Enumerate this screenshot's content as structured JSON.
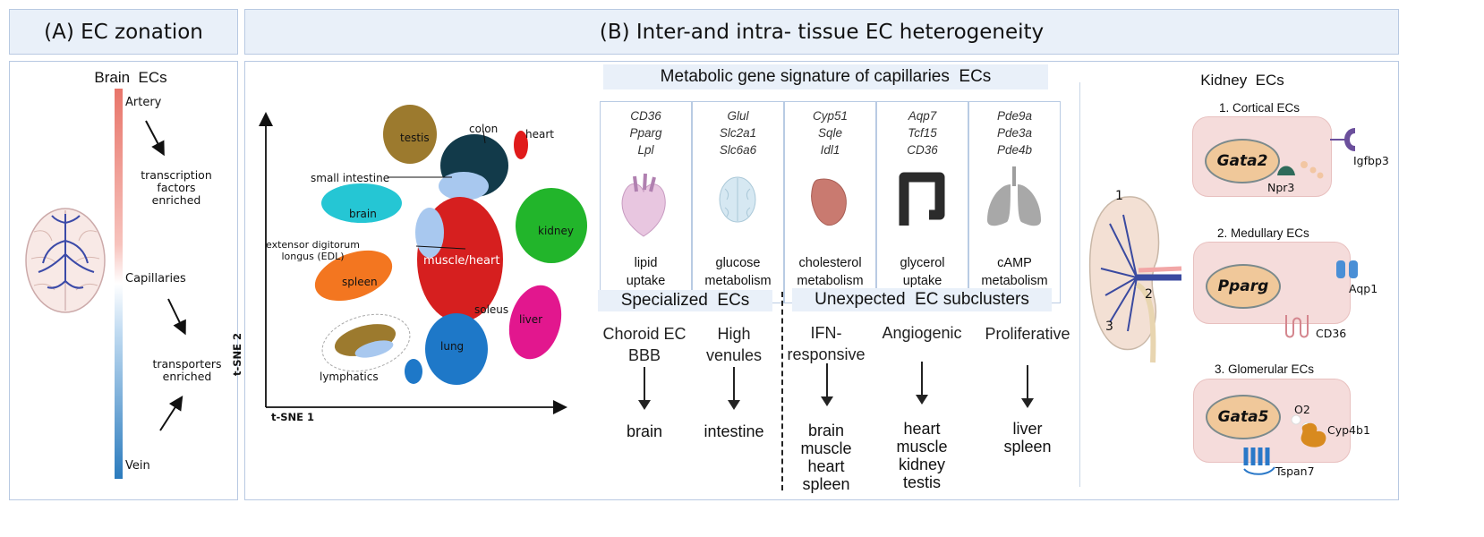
{
  "panel_a": {
    "header": "(A) EC zonation",
    "title": "Brain  ECs",
    "artery": "Artery",
    "capillaries": "Capillaries",
    "vein": "Vein",
    "tf_enriched": [
      "transcription",
      "factors",
      "enriched"
    ],
    "transporters_enriched": [
      "transporters",
      "enriched"
    ],
    "colors": {
      "artery": "#e8756a",
      "vein": "#2b7bbd"
    }
  },
  "panel_b": {
    "header": "(B) Inter-and intra- tissue EC heterogeneity",
    "tsne": {
      "y_axis": "t-SNE 2",
      "x_axis": "t-SNE 1",
      "clusters": {
        "testis": "testis",
        "colon": "colon",
        "heart": "heart",
        "small_intestine": "small intestine",
        "brain": "brain",
        "kidney": "kidney",
        "edl": [
          "extensor digitorum",
          "longus (EDL)"
        ],
        "muscle_heart": "muscle/heart",
        "spleen": "spleen",
        "soleus": "soleus",
        "liver": "liver",
        "lung": "lung",
        "lymphatics": "lymphatics"
      },
      "colors": {
        "testis": "#9c7a2e",
        "colon": "#123a4a",
        "heart": "#e01b1b",
        "brain": "#25c6d4",
        "kidney": "#22b52b",
        "muscle": "#d61f1f",
        "spleen": "#f37620",
        "liver": "#e2178e",
        "lung": "#1e78c8",
        "light_blue": "#a8c8ef"
      }
    },
    "metabolic": {
      "title": "Metabolic gene signature of capillaries  ECs",
      "columns": [
        {
          "genes": [
            "CD36",
            "Pparg",
            "Lpl"
          ],
          "function": [
            "lipid",
            "uptake"
          ],
          "icon": "heart-icon"
        },
        {
          "genes": [
            "Glul",
            "Slc2a1",
            "Slc6a6"
          ],
          "function": [
            "glucose",
            "metabolism"
          ],
          "icon": "brain-icon"
        },
        {
          "genes": [
            "Cyp51",
            "Sqle",
            "Idl1"
          ],
          "function": [
            "cholesterol",
            "metabolism"
          ],
          "icon": "liver-icon"
        },
        {
          "genes": [
            "Aqp7",
            "Tcf15",
            "CD36"
          ],
          "function": [
            "glycerol",
            "uptake"
          ],
          "icon": "colon-icon"
        },
        {
          "genes": [
            "Pde9a",
            "Pde3a",
            "Pde4b"
          ],
          "function": [
            "cAMP",
            "metabolism"
          ],
          "icon": "lung-icon"
        }
      ]
    },
    "specialized": {
      "title": "Specialized  ECs",
      "items": [
        {
          "label": [
            "Choroid EC",
            "BBB"
          ],
          "tissues": [
            "brain"
          ]
        },
        {
          "label": [
            "High",
            "venules"
          ],
          "tissues": [
            "intestine"
          ]
        }
      ]
    },
    "unexpected": {
      "title": "Unexpected  EC subclusters",
      "items": [
        {
          "label": [
            "IFN-",
            "responsive"
          ],
          "tissues": [
            "brain",
            "muscle",
            "heart",
            "spleen"
          ]
        },
        {
          "label": [
            "Angiogenic"
          ],
          "tissues": [
            "heart",
            "muscle",
            "kidney",
            "testis"
          ]
        },
        {
          "label": [
            "Proliferative"
          ],
          "tissues": [
            "liver",
            "spleen"
          ]
        }
      ]
    },
    "kidney": {
      "title": "Kidney  ECs",
      "numbers": [
        "1",
        "2",
        "3"
      ],
      "cells": [
        {
          "title": "1. Cortical ECs",
          "nucleus": "Gata2",
          "markers": [
            "Npr3",
            "Igfbp3"
          ]
        },
        {
          "title": "2. Medullary ECs",
          "nucleus": "Pparg",
          "markers": [
            "Aqp1",
            "CD36"
          ]
        },
        {
          "title": "3. Glomerular ECs",
          "nucleus": "Gata5",
          "markers": [
            "O2",
            "Cyp4b1",
            "Tspan7"
          ]
        }
      ]
    }
  }
}
